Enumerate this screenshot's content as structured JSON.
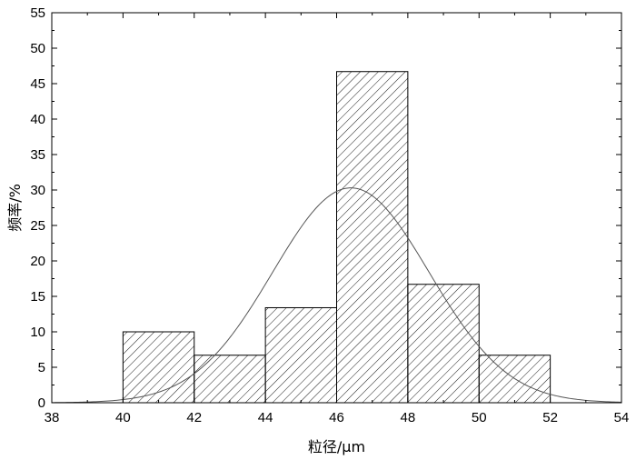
{
  "chart_data": {
    "type": "bar",
    "subtype": "histogram",
    "title": "",
    "xlabel": "粒径/μm",
    "ylabel": "频率/%",
    "xlim": [
      38,
      54
    ],
    "ylim": [
      0,
      55
    ],
    "x_ticks": [
      38,
      40,
      42,
      44,
      46,
      48,
      50,
      52,
      54
    ],
    "y_ticks": [
      0,
      5,
      10,
      15,
      20,
      25,
      30,
      35,
      40,
      45,
      50,
      55
    ],
    "bins": [
      {
        "start": 40,
        "end": 42,
        "value": 10.0
      },
      {
        "start": 42,
        "end": 44,
        "value": 6.7
      },
      {
        "start": 44,
        "end": 46,
        "value": 13.4
      },
      {
        "start": 46,
        "end": 48,
        "value": 46.7
      },
      {
        "start": 48,
        "end": 50,
        "value": 16.7
      },
      {
        "start": 50,
        "end": 52,
        "value": 6.7
      }
    ],
    "fit_curve": {
      "type": "normal",
      "mean": 46.4,
      "sigma": 2.2,
      "peak": 30.3
    },
    "bar_fill": "hatched",
    "grid": false,
    "legend": "none"
  }
}
